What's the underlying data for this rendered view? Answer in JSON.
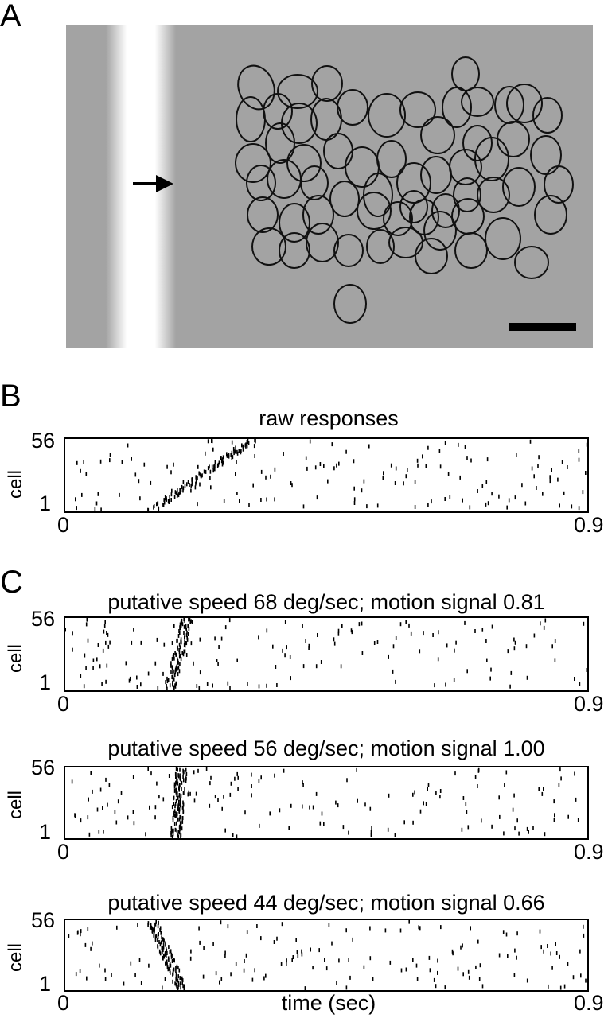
{
  "panel_labels": [
    "A",
    "B",
    "C"
  ],
  "chart_data": [
    {
      "type": "scatter",
      "panel": "B",
      "title": "raw responses",
      "ylabel": "cell",
      "xlabel": "",
      "xlim": [
        0,
        0.9
      ],
      "ylim": [
        1,
        56
      ],
      "x_tick_labels": [
        "0",
        "0.9"
      ],
      "y_tick_labels": [
        "1",
        "56"
      ],
      "wave": {
        "t_start": 0.15,
        "t_end": 0.32
      },
      "seed": 11
    },
    {
      "type": "scatter",
      "panel": "C",
      "title": "putative speed 68 deg/sec; motion signal 0.81",
      "ylabel": "cell",
      "xlabel": "",
      "xlim": [
        0,
        0.9
      ],
      "ylim": [
        1,
        56
      ],
      "x_tick_labels": [
        "0",
        "0.9"
      ],
      "y_tick_labels": [
        "1",
        "56"
      ],
      "wave": {
        "t_start": 0.18,
        "t_end": 0.21
      },
      "seed": 23
    },
    {
      "type": "scatter",
      "panel": "C",
      "title": "putative speed 56 deg/sec; motion signal 1.00",
      "ylabel": "cell",
      "xlabel": "",
      "xlim": [
        0,
        0.9
      ],
      "ylim": [
        1,
        56
      ],
      "x_tick_labels": [
        "0",
        "0.9"
      ],
      "y_tick_labels": [
        "1",
        "56"
      ],
      "wave": {
        "t_start": 0.19,
        "t_end": 0.2
      },
      "seed": 37
    },
    {
      "type": "scatter",
      "panel": "C",
      "title": "putative speed 44 deg/sec; motion signal 0.66",
      "ylabel": "cell",
      "xlabel": "time (sec)",
      "xlim": [
        0,
        0.9
      ],
      "ylim": [
        1,
        56
      ],
      "x_tick_labels": [
        "0",
        "0.9"
      ],
      "y_tick_labels": [
        "1",
        "56"
      ],
      "wave": {
        "t_start": 0.2,
        "t_end": 0.15
      },
      "seed": 51
    }
  ]
}
